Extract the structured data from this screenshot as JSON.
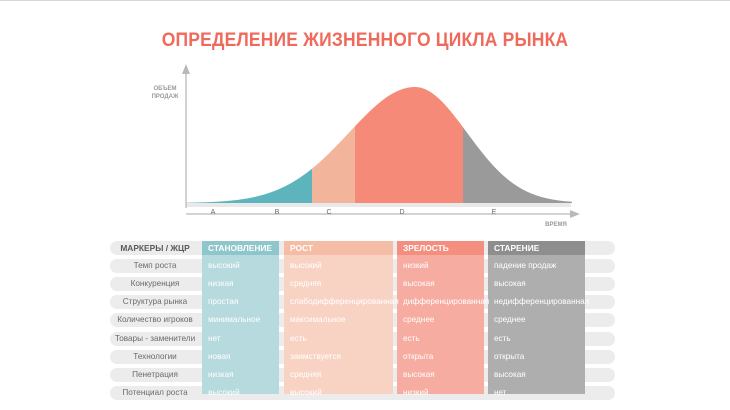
{
  "title": "ОПРЕДЕЛЕНИЕ ЖИЗНЕННОГО ЦИКЛА РЫНКА",
  "axes": {
    "y_label_line1": "ОБЪЕМ",
    "y_label_line2": "ПРОДАЖ",
    "x_label": "ВРЕМЯ"
  },
  "stages": [
    {
      "letter": "A",
      "color": "#5db4bd"
    },
    {
      "letter": "B",
      "color": "#5db4bd"
    },
    {
      "letter": "C",
      "color": "#f2b49a"
    },
    {
      "letter": "D",
      "color": "#f58a78"
    },
    {
      "letter": "E",
      "color": "#9a9a9a"
    }
  ],
  "table": {
    "header_label": "МАРКЕРЫ / ЖЦР",
    "columns": [
      {
        "name": "СТАНОВЛЕНИЕ",
        "header_color": "#8ec6cc",
        "body_color": "#b6dade",
        "text_color": "#ffffff"
      },
      {
        "name": "РОСТ",
        "header_color": "#f6bda6",
        "body_color": "#f8d3c4",
        "text_color": "#ffffff"
      },
      {
        "name": "ЗРЕЛОСТЬ",
        "header_color": "#f48f80",
        "body_color": "#f6aca0",
        "text_color": "#ffffff"
      },
      {
        "name": "СТАРЕНИЕ",
        "header_color": "#8e8e8e",
        "body_color": "#aeaeae",
        "text_color": "#ffffff"
      }
    ],
    "rows": [
      {
        "label": "Темп роста",
        "values": [
          "высокий",
          "высокий",
          "низкий",
          "падение продаж"
        ]
      },
      {
        "label": "Конкуренция",
        "values": [
          "низкая",
          "средняя",
          "высокая",
          "высокая"
        ]
      },
      {
        "label": "Структура рынка",
        "values": [
          "простая",
          "слабодифференцированная",
          "дифференцированная",
          "недифференцированная"
        ]
      },
      {
        "label": "Количество игроков",
        "values": [
          "минимальное",
          "максимальное",
          "среднее",
          "среднее"
        ]
      },
      {
        "label": "Товары - заменители",
        "values": [
          "нет",
          "есть",
          "есть",
          "есть"
        ]
      },
      {
        "label": "Технологии",
        "values": [
          "новая",
          "заимствуется",
          "открыта",
          "открыта"
        ]
      },
      {
        "label": "Пенетрация",
        "values": [
          "низкая",
          "средняя",
          "высокая",
          "высокая"
        ]
      },
      {
        "label": "Потенциал роста",
        "values": [
          "высокий",
          "высокий",
          "низкий",
          "нет"
        ]
      }
    ]
  }
}
